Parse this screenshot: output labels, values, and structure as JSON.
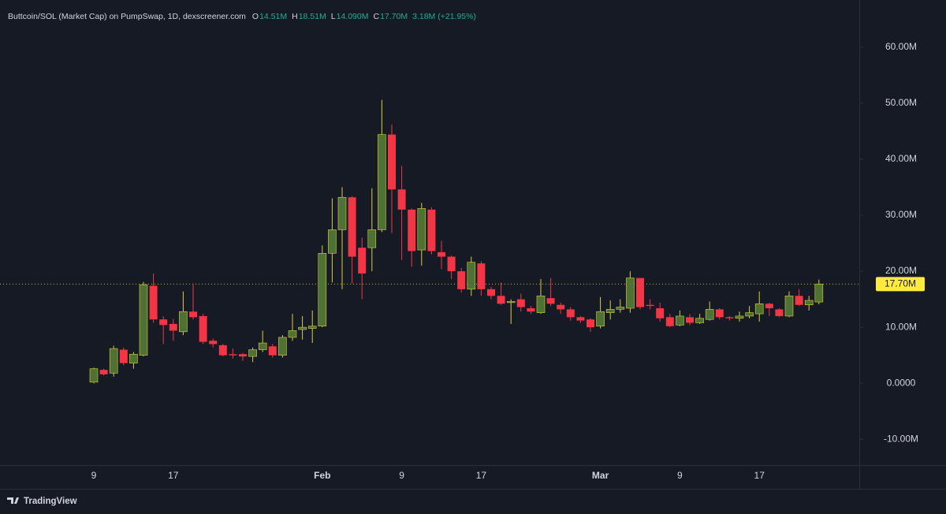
{
  "chart_data": {
    "type": "candlestick",
    "title": "Buttcoin/SOL (Market Cap) on PumpSwap, 1D, dexscreener.com",
    "ohlc_legend": [
      {
        "key": "O",
        "value": "14.51M"
      },
      {
        "key": "H",
        "value": "18.51M"
      },
      {
        "key": "L",
        "value": "14.090M"
      },
      {
        "key": "C",
        "value": "17.70M"
      }
    ],
    "change": "3.18M (+21.95%)",
    "categories": [
      "9",
      null,
      null,
      null,
      null,
      null,
      null,
      null,
      "17",
      null,
      null,
      null,
      null,
      null,
      null,
      null,
      null,
      null,
      null,
      null,
      null,
      null,
      null,
      "Feb",
      null,
      null,
      null,
      null,
      null,
      null,
      null,
      "9",
      null,
      null,
      null,
      null,
      null,
      null,
      null,
      "17",
      null,
      null,
      null,
      null,
      null,
      null,
      null,
      null,
      null,
      null,
      null,
      "Mar",
      null,
      null,
      null,
      null,
      null,
      null,
      null,
      "9",
      null,
      null,
      null,
      null,
      null,
      null,
      null,
      "17",
      null,
      null,
      null,
      null,
      null,
      null
    ],
    "open": [
      0.2,
      2.4,
      1.8,
      6,
      3.6,
      5,
      17.4,
      11.4,
      10.6,
      9.2,
      12.8,
      12,
      7.6,
      6.8,
      5.2,
      5.2,
      4.8,
      6,
      6.6,
      5,
      8.2,
      9.6,
      9.8,
      10.2,
      23.2,
      27.4,
      33.2,
      24.2,
      24.2,
      27.4,
      44.4,
      34.6,
      31,
      23.8,
      31,
      23.4,
      22.6,
      20,
      16.8,
      21.4,
      16.8,
      15.6,
      14.4,
      15,
      13.4,
      12.6,
      15.2,
      14,
      13.2,
      11.8,
      11.4,
      10.2,
      12.6,
      13.2,
      13.4,
      18.8,
      14,
      13.4,
      11.8,
      10.4,
      11.8,
      10.8,
      11.4,
      13.2,
      11.8,
      11.6,
      12,
      12.4,
      14.2,
      13.2,
      12,
      15.6,
      14,
      14.51
    ],
    "high": [
      2.8,
      2.6,
      6.7,
      6.4,
      5.6,
      18.1,
      19.6,
      12,
      11.5,
      16.4,
      17.8,
      12.4,
      8,
      7,
      6.2,
      5.4,
      6.4,
      9.4,
      7,
      8.6,
      12.4,
      12,
      13,
      24.6,
      33,
      35,
      33.4,
      26,
      34.8,
      50.6,
      46.2,
      38.8,
      31.2,
      32.2,
      31.4,
      25.4,
      22.8,
      20.6,
      22.6,
      21.8,
      17.2,
      18,
      15,
      16,
      13.8,
      18.6,
      18.8,
      14.4,
      13.6,
      12,
      11.6,
      15.4,
      14.8,
      15,
      20,
      18.8,
      15,
      14.4,
      12.4,
      13,
      12.4,
      12.4,
      14.6,
      13.4,
      12,
      12.8,
      13.8,
      16.4,
      14.4,
      13.4,
      16.4,
      16.8,
      15.6,
      18.51
    ],
    "low": [
      0,
      1.4,
      1.2,
      3.2,
      2.6,
      4.8,
      10.8,
      7,
      7.6,
      8.6,
      11.4,
      7,
      6.4,
      4.8,
      4.4,
      4,
      3.8,
      5.6,
      4.6,
      4.6,
      7.6,
      7.8,
      7.2,
      10,
      18,
      16.8,
      17.8,
      15,
      20,
      27,
      26.8,
      22,
      20.8,
      21,
      23,
      20.4,
      18.6,
      16.2,
      15.6,
      15.6,
      15,
      14,
      10.6,
      12.8,
      12.4,
      12.4,
      13.8,
      12.4,
      11.2,
      10.8,
      9.2,
      9.8,
      11.4,
      12.6,
      12.6,
      13.2,
      13.2,
      11,
      10,
      10.2,
      10.4,
      10.6,
      11.2,
      11.4,
      11.2,
      11,
      11.6,
      11,
      12,
      11.8,
      11.8,
      13.8,
      13,
      14.09
    ],
    "close": [
      2.6,
      1.6,
      6.2,
      3.6,
      5.2,
      17.6,
      11.4,
      10.4,
      9.4,
      12.8,
      11.8,
      7.4,
      7,
      5,
      5,
      4.8,
      6,
      7.2,
      5,
      8.2,
      9.4,
      10,
      10.2,
      23.2,
      27.4,
      33.2,
      22.6,
      19.6,
      27.4,
      44.4,
      34.6,
      31,
      23.6,
      31.2,
      23.6,
      22.6,
      20,
      16.8,
      21.6,
      16.8,
      15.6,
      14.2,
      14.6,
      13.6,
      12.8,
      15.6,
      14.2,
      13.2,
      11.8,
      11.2,
      10,
      12.8,
      13.2,
      13.6,
      18.8,
      13.6,
      13.8,
      11.6,
      10.2,
      12,
      10.8,
      11.6,
      13.2,
      11.8,
      11.6,
      12,
      12.6,
      14.2,
      13.4,
      12,
      15.6,
      14,
      14.8,
      17.7
    ],
    "up_color": "#4f7133",
    "down_color": "#f23645",
    "wick_up_color": "#d9cf3a",
    "wick_down_color": "#f23645",
    "ylim": [
      -14.6,
      67
    ],
    "yticks": [
      {
        "value": -10,
        "label": "-10.00M"
      },
      {
        "value": 0,
        "label": "0.0000"
      },
      {
        "value": 10,
        "label": "10.00M"
      },
      {
        "value": 20,
        "label": "20.00M"
      },
      {
        "value": 30,
        "label": "30.00M"
      },
      {
        "value": 40,
        "label": "40.00M"
      },
      {
        "value": 50,
        "label": "50.00M"
      },
      {
        "value": 60,
        "label": "60.00M"
      }
    ],
    "price_line": {
      "value": 17.7,
      "label": "17.70M"
    },
    "grid": false
  },
  "footer": {
    "brand": "TradingView"
  }
}
